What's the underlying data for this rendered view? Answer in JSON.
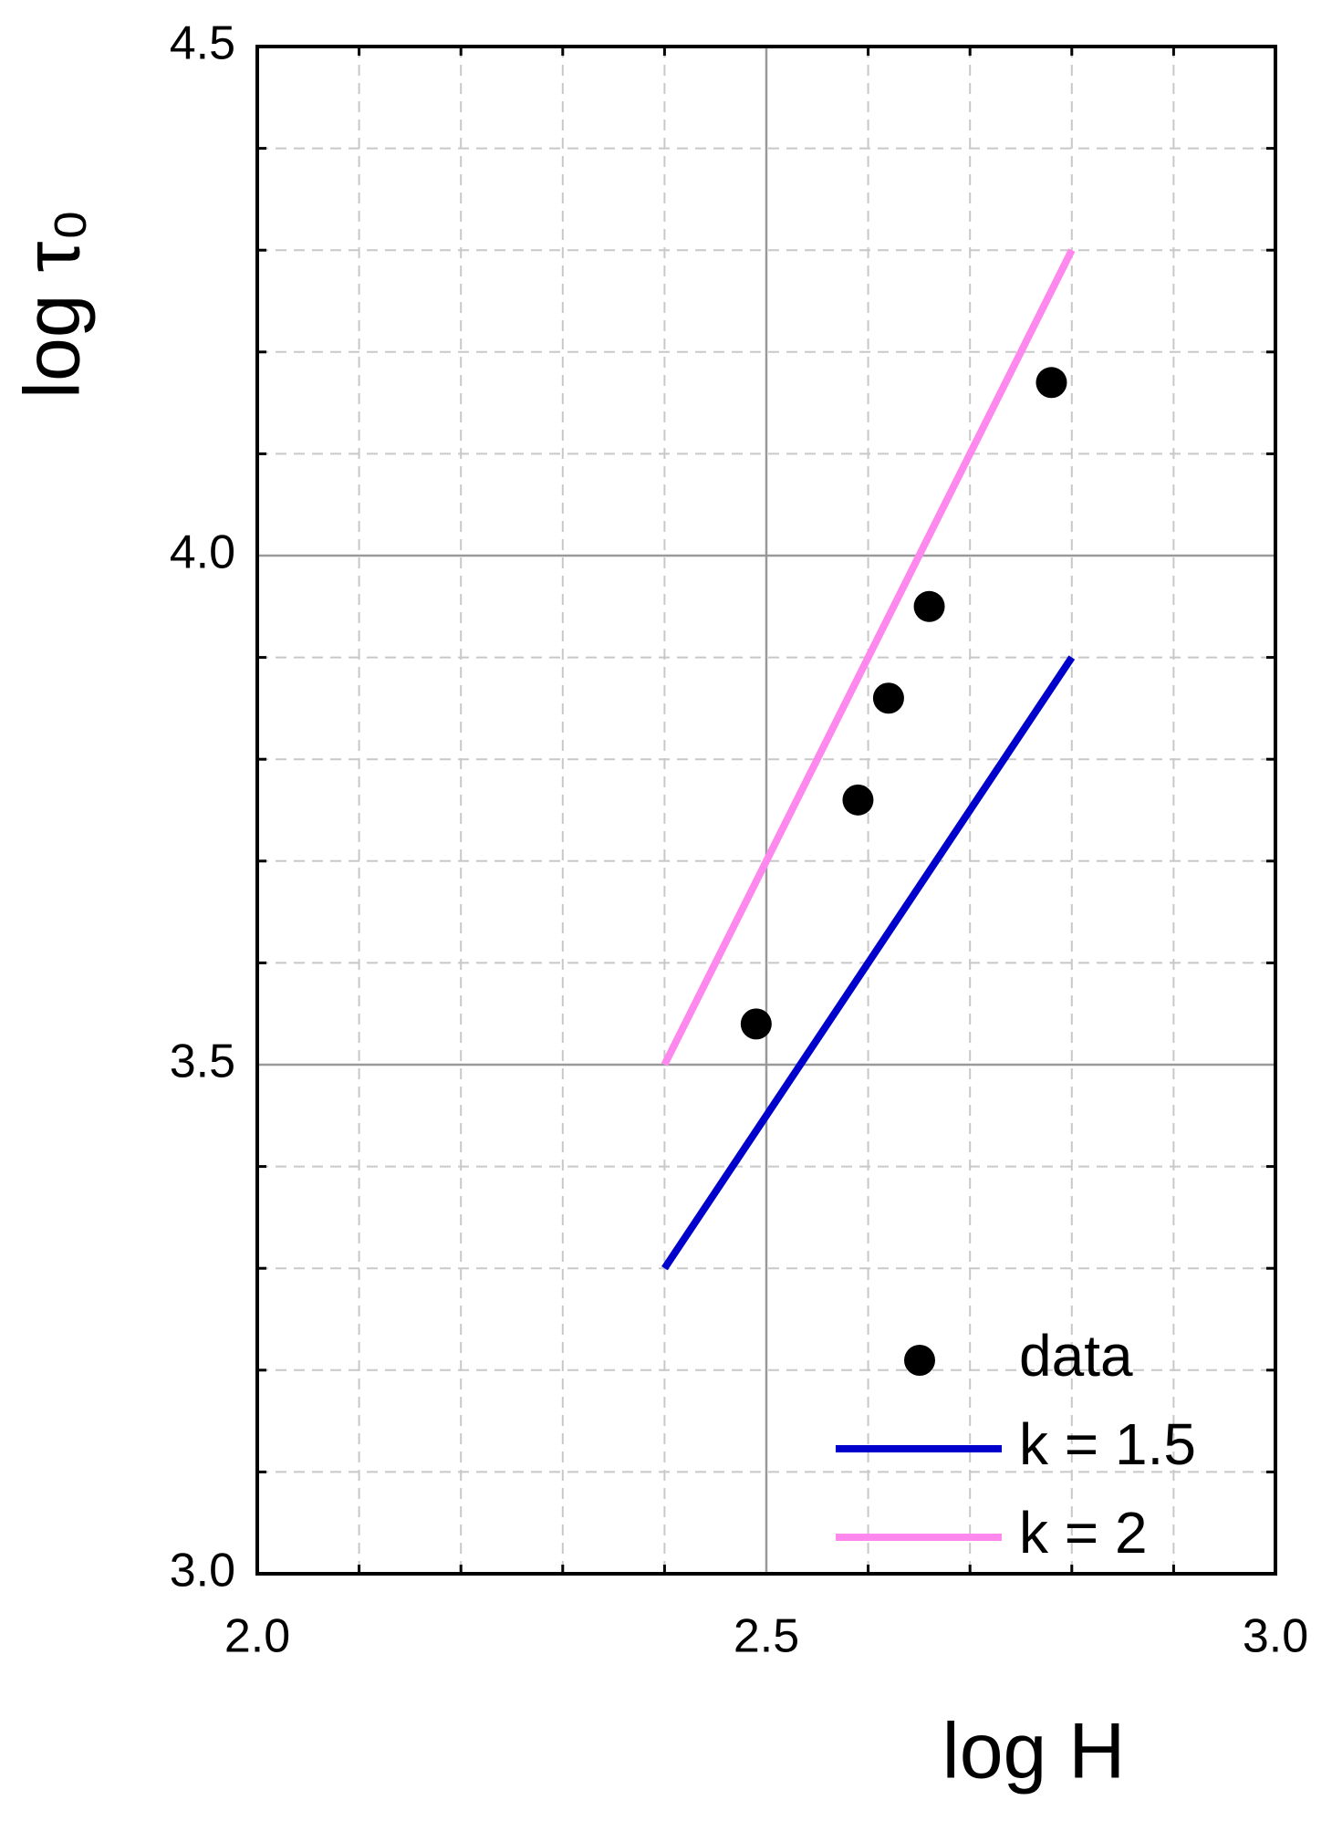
{
  "chart_data": {
    "type": "scatter",
    "xlabel": "log H",
    "ylabel": "log τ₀",
    "xlim": [
      2.0,
      3.0
    ],
    "ylim": [
      3.0,
      4.5
    ],
    "xticks": [
      {
        "value": 2.0,
        "label": "2.0"
      },
      2.5,
      {
        "value": 3.0,
        "label": "3.0"
      }
    ],
    "yticks": [
      {
        "value": 3.0,
        "label": "3.0"
      },
      3.5,
      {
        "value": 4.0,
        "label": "4.0"
      },
      4.5
    ],
    "grid": true,
    "legend": "lower right",
    "series": [
      {
        "name": "data",
        "type": "scatter",
        "color": "#000000",
        "x": [
          2.49,
          2.59,
          2.62,
          2.66,
          2.78
        ],
        "values": [
          3.54,
          3.76,
          3.86,
          3.95,
          4.17
        ]
      },
      {
        "name": "k = 1.5",
        "type": "line",
        "color": "#0000cc",
        "x": [
          2.4,
          2.8
        ],
        "values": [
          3.3,
          3.9
        ]
      },
      {
        "name": "k = 2",
        "type": "line",
        "color": "#ff88ee",
        "x": [
          2.4,
          2.8
        ],
        "values": [
          3.5,
          4.3
        ]
      }
    ]
  }
}
